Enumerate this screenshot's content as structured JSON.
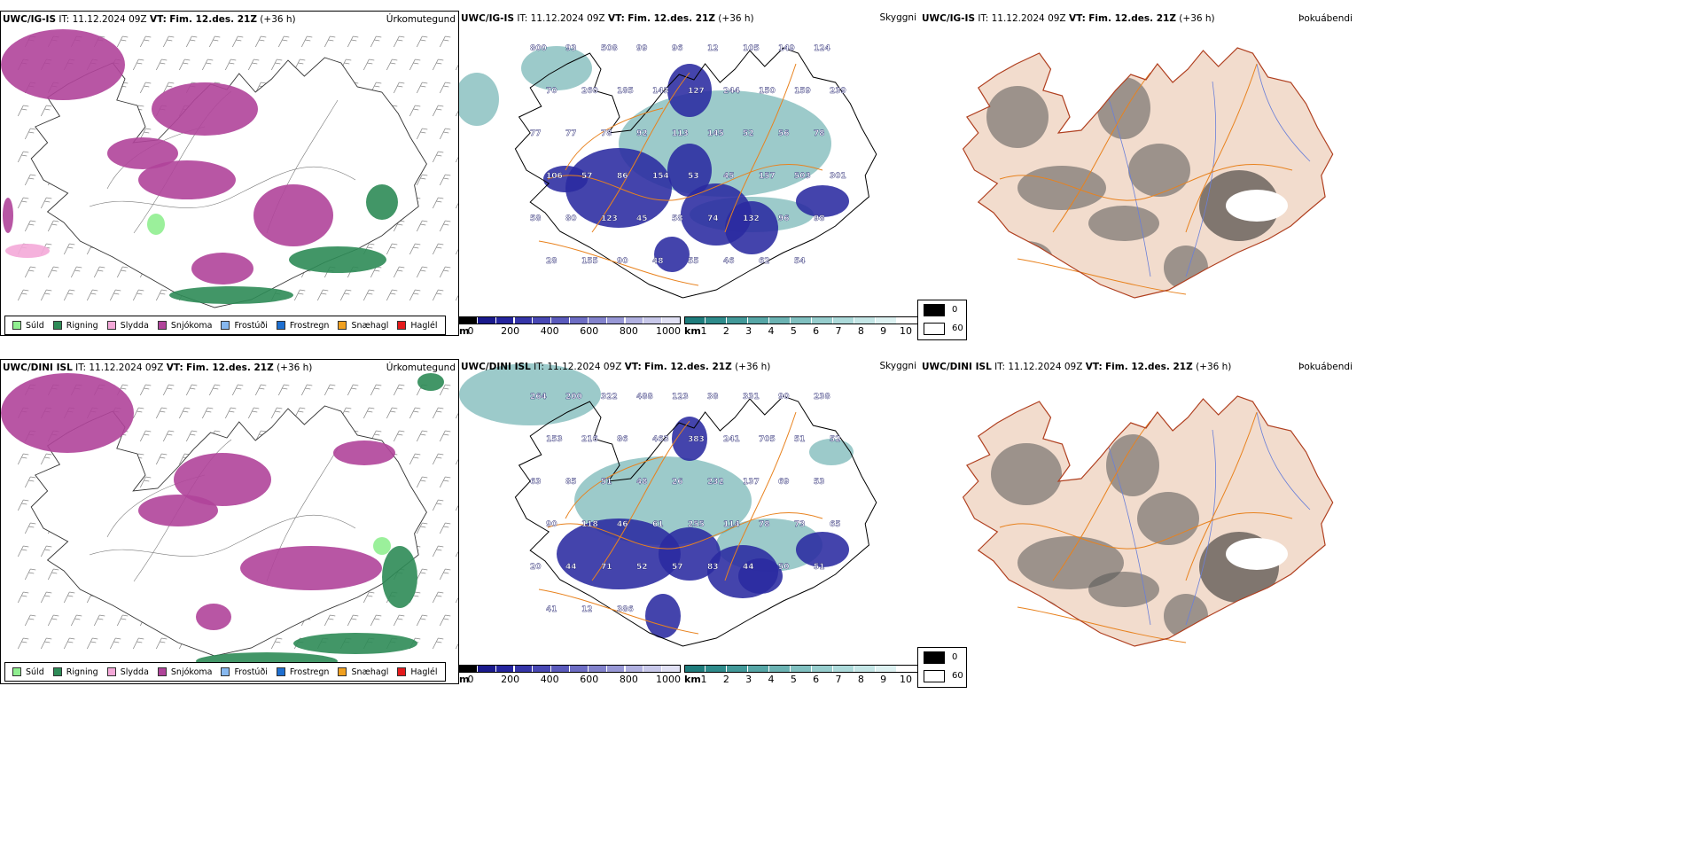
{
  "rows": [
    {
      "model": "UWC/IG-IS",
      "it_label": "IT:",
      "it_value": "11.12.2024 09Z",
      "vt_label": "VT:",
      "vt_value": "Fim. 12.des. 21Z",
      "lead": "(+36 h)",
      "precip_type_title": "Úrkomutegund",
      "cloud_title": "Skyggni",
      "fog_title": "Þokuábendi",
      "cloud_labels": [
        "800",
        "93",
        "508",
        "99",
        "96",
        "12",
        "105",
        "149",
        "124",
        "70",
        "260",
        "185",
        "143",
        "127",
        "244",
        "150",
        "159",
        "239",
        "77",
        "77",
        "78",
        "92",
        "113",
        "145",
        "52",
        "56",
        "78",
        "106",
        "57",
        "86",
        "154",
        "53",
        "45",
        "157",
        "503",
        "301",
        "58",
        "80",
        "123",
        "45",
        "58",
        "74",
        "132",
        "96",
        "98",
        "28",
        "155",
        "90",
        "48",
        "55",
        "46",
        "62",
        "54"
      ]
    },
    {
      "model": "UWC/DINI ISL",
      "it_label": "IT:",
      "it_value": "11.12.2024 09Z",
      "vt_label": "VT:",
      "vt_value": "Fim. 12.des. 21Z",
      "lead": "(+36 h)",
      "precip_type_title": "Úrkomutegund",
      "cloud_title": "Skyggni",
      "fog_title": "Þokuábendi",
      "cloud_labels": [
        "264",
        "200",
        "322",
        "488",
        "123",
        "38",
        "331",
        "90",
        "238",
        "153",
        "216",
        "86",
        "463",
        "383",
        "241",
        "705",
        "51",
        "52",
        "63",
        "85",
        "51",
        "48",
        "26",
        "232",
        "137",
        "69",
        "53",
        "90",
        "118",
        "46",
        "61",
        "255",
        "114",
        "78",
        "73",
        "65",
        "20",
        "44",
        "71",
        "52",
        "57",
        "83",
        "44",
        "50",
        "51",
        "41",
        "12",
        "386"
      ]
    }
  ],
  "precip_legend": [
    {
      "label": "Súld",
      "color": "#90ee90"
    },
    {
      "label": "Rigning",
      "color": "#2e8b57"
    },
    {
      "label": "Slydda",
      "color": "#f4a8d8"
    },
    {
      "label": "Snjókoma",
      "color": "#b0449a"
    },
    {
      "label": "Frostúði",
      "color": "#87b8ef"
    },
    {
      "label": "Frostregn",
      "color": "#1e6fd0"
    },
    {
      "label": "Snæhagl",
      "color": "#f0a020"
    },
    {
      "label": "Haglél",
      "color": "#e41a1c"
    }
  ],
  "cloud_base_scale": {
    "unit": "m",
    "ticks": [
      "0",
      "200",
      "400",
      "600",
      "800",
      "1000"
    ],
    "colors": [
      "#000000",
      "#1a1a8c",
      "#25259e",
      "#3535a8",
      "#4848b4",
      "#5a5abc",
      "#6d6dc4",
      "#8282cc",
      "#9898d6",
      "#b0b0e0",
      "#c8c8ea",
      "#e0e0f4"
    ]
  },
  "visibility_scale": {
    "unit": "km",
    "ticks": [
      "1",
      "2",
      "3",
      "4",
      "5",
      "6",
      "7",
      "8",
      "9",
      "10"
    ],
    "colors": [
      "#1e7c7c",
      "#2e8b8b",
      "#429999",
      "#56a6a6",
      "#6bb3b3",
      "#80c0c0",
      "#96cdcd",
      "#acdada",
      "#c4e6e6",
      "#ddf2f2",
      "#ffffff"
    ]
  },
  "fog_legend": {
    "high": "0",
    "low": "60",
    "high_color": "#000000",
    "low_color": "#ffffff"
  },
  "colors": {
    "snow": "#b0449a",
    "rain": "#2e8b57",
    "drizzle": "#90ee90",
    "sleet": "#f4a8d8",
    "cloud_dark": "#2a2aa0",
    "cloud_teal": "#4a9f9f",
    "roads": "#e8821e",
    "land_fog": "#f2dccd",
    "rivers": "#6a7fd8",
    "coast": "#000000"
  }
}
